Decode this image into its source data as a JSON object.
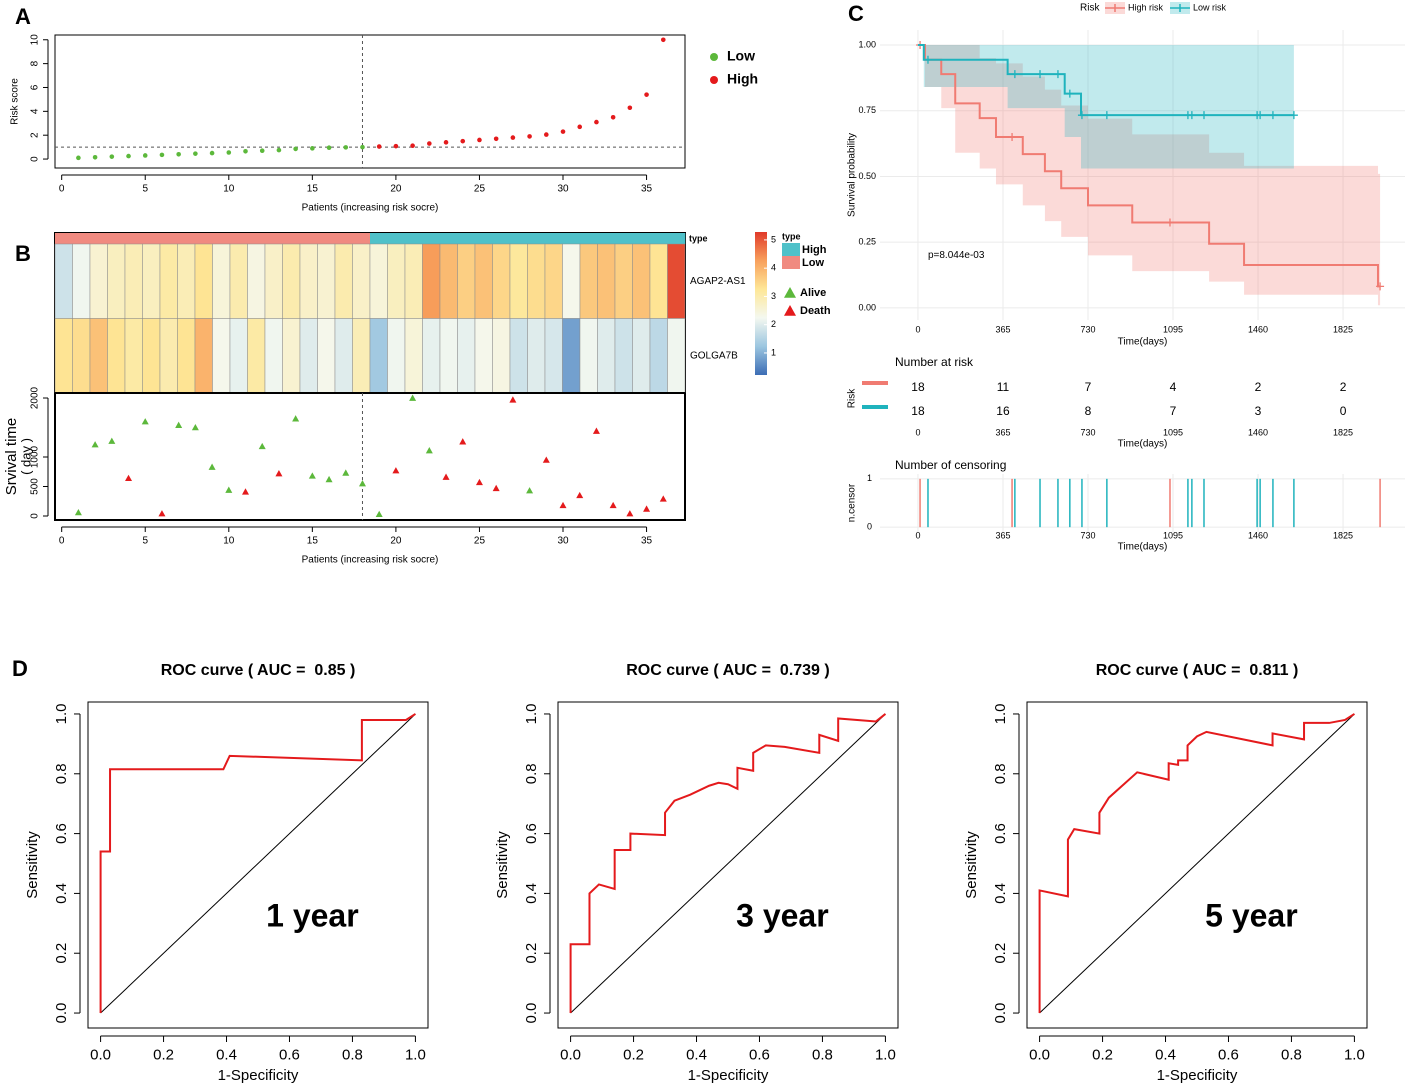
{
  "chart_data": [
    {
      "type": "scatter",
      "panel": "A",
      "marker": "circle",
      "ylabel": "Risk score",
      "xlabel": "Patients (increasing risk socre)",
      "xlim": [
        -0.4,
        37.3
      ],
      "ylim": [
        -0.75,
        10.4
      ],
      "xticks": [
        0,
        5,
        10,
        15,
        20,
        25,
        30,
        35
      ],
      "yticks": [
        0,
        2,
        4,
        6,
        8,
        10
      ],
      "reference_lines": {
        "x": 18,
        "y": 1
      },
      "legend": "right",
      "series": [
        {
          "name": "Low",
          "color": "#5cb83b",
          "x": [
            1,
            2,
            3,
            4,
            5,
            6,
            7,
            8,
            9,
            10,
            11,
            12,
            13,
            14,
            15,
            16,
            17,
            18
          ],
          "values": [
            0.1,
            0.15,
            0.2,
            0.25,
            0.3,
            0.35,
            0.4,
            0.45,
            0.5,
            0.55,
            0.65,
            0.7,
            0.75,
            0.85,
            0.9,
            0.95,
            0.98,
            1.0
          ]
        },
        {
          "name": "High",
          "color": "#e41a1c",
          "x": [
            19,
            20,
            21,
            22,
            23,
            24,
            25,
            26,
            27,
            28,
            29,
            30,
            31,
            32,
            33,
            34,
            35,
            36
          ],
          "values": [
            1.05,
            1.08,
            1.12,
            1.3,
            1.4,
            1.5,
            1.6,
            1.7,
            1.8,
            1.9,
            2.05,
            2.3,
            2.7,
            3.1,
            3.5,
            4.3,
            5.4,
            10.0
          ]
        }
      ]
    },
    {
      "type": "heatmap",
      "panel": "B",
      "rows": [
        "AGAP2-AS1",
        "GOLGA7B"
      ],
      "values": [
        [
          1.8,
          2.2,
          2.6,
          2.8,
          2.9,
          2.8,
          3.1,
          2.9,
          3.3,
          2.5,
          3.0,
          2.4,
          2.7,
          3.0,
          2.7,
          2.6,
          3.0,
          2.7,
          2.5,
          2.8,
          2.9,
          4.3,
          3.9,
          3.6,
          3.8,
          3.5,
          3.2,
          3.4,
          3.5,
          2.3,
          3.7,
          3.8,
          3.6,
          3.8,
          3.3,
          5.1
        ],
        [
          3.3,
          3.4,
          3.8,
          3.3,
          3.1,
          3.3,
          3.0,
          3.3,
          4.0,
          2.3,
          2.1,
          3.1,
          2.2,
          2.6,
          2.0,
          2.3,
          2.0,
          2.9,
          1.3,
          2.2,
          2.5,
          2.1,
          2.2,
          2.1,
          2.3,
          2.4,
          1.8,
          2.0,
          1.9,
          0.8,
          2.2,
          2.0,
          1.8,
          2.0,
          1.6,
          2.2
        ]
      ],
      "annotation": {
        "name": "type",
        "values": [
          "Low",
          "Low",
          "Low",
          "Low",
          "Low",
          "Low",
          "Low",
          "Low",
          "Low",
          "Low",
          "Low",
          "Low",
          "Low",
          "Low",
          "Low",
          "Low",
          "Low",
          "Low",
          "High",
          "High",
          "High",
          "High",
          "High",
          "High",
          "High",
          "High",
          "High",
          "High",
          "High",
          "High",
          "High",
          "High",
          "High",
          "High",
          "High",
          "High"
        ],
        "levels": [
          {
            "name": "High",
            "color": "#4fc1c9"
          },
          {
            "name": "Low",
            "color": "#f08a80"
          }
        ]
      },
      "zlim": [
        0.22,
        5.28
      ],
      "zticks": [
        1,
        2,
        3,
        4,
        5
      ],
      "colors": [
        "#3c6db5",
        "#9cc6e0",
        "#f4f8f0",
        "#fee797",
        "#f8a05c",
        "#e03a2a"
      ]
    },
    {
      "type": "scatter",
      "marker": "triangle",
      "ylabel": "Srvival time",
      "ylabel2": "( day )",
      "xlabel": "Patients (increasing risk socre)",
      "xlim": [
        -0.4,
        37.3
      ],
      "ylim": [
        -68,
        2085
      ],
      "xticks": [
        0,
        5,
        10,
        15,
        20,
        25,
        30,
        35
      ],
      "yticks": [
        0,
        500,
        1000,
        2000
      ],
      "reference_lines": {
        "x": 18
      },
      "legend": "right",
      "series": [
        {
          "name": "Alive",
          "color": "#5cb83b",
          "x": [
            1,
            2,
            3,
            5,
            7,
            8,
            9,
            10,
            12,
            14,
            15,
            16,
            17,
            18,
            19,
            21,
            22,
            28
          ],
          "values": [
            60,
            1210,
            1270,
            1600,
            1540,
            1500,
            830,
            440,
            1180,
            1650,
            680,
            620,
            730,
            550,
            30,
            2000,
            1110,
            430
          ]
        },
        {
          "name": "Death",
          "color": "#e41a1c",
          "x": [
            4,
            6,
            11,
            13,
            20,
            23,
            24,
            25,
            26,
            27,
            29,
            30,
            31,
            32,
            33,
            34,
            35,
            36
          ],
          "values": [
            640,
            40,
            410,
            720,
            770,
            660,
            1260,
            570,
            470,
            1970,
            950,
            180,
            350,
            1440,
            180,
            40,
            120,
            290
          ]
        }
      ]
    },
    {
      "type": "survival",
      "panel": "C",
      "legend_title": "Risk",
      "legend": "top",
      "xlabel": "Time(days)",
      "ylabel": "Survival probability",
      "pvalue": "p=8.044e-03",
      "grid": true,
      "xlim": [
        -163,
        2091
      ],
      "ylim": [
        -0.046,
        1.057
      ],
      "xticks": [
        0,
        365,
        730,
        1095,
        1460,
        1825
      ],
      "yticks": [
        {
          "value": 0,
          "label": "0.00"
        },
        {
          "value": 0.25,
          "label": "0.25"
        },
        {
          "value": 0.5,
          "label": "0.50"
        },
        {
          "value": 0.75,
          "label": "0.75"
        },
        {
          "value": 1,
          "label": "1.00"
        }
      ],
      "series": [
        {
          "name": "High risk",
          "color": "#f07b72",
          "x": [
            0,
            30,
            100,
            160,
            265,
            335,
            450,
            545,
            615,
            730,
            920,
            1250,
            1400,
            1975
          ],
          "values": [
            1,
            0.944,
            0.889,
            0.778,
            0.722,
            0.65,
            0.585,
            0.52,
            0.455,
            0.39,
            0.325,
            0.244,
            0.163,
            0.082
          ],
          "upper": [
            1,
            1,
            1,
            1,
            0.95,
            0.93,
            0.88,
            0.83,
            0.77,
            0.72,
            0.66,
            0.59,
            0.54,
            0.51
          ],
          "lower": [
            1,
            0.84,
            0.76,
            0.59,
            0.53,
            0.47,
            0.39,
            0.33,
            0.27,
            0.2,
            0.14,
            0.1,
            0.05,
            0.01
          ],
          "censor": [
            9,
            404,
            1082,
            1984
          ]
        },
        {
          "name": "Low risk",
          "color": "#1fb3bd",
          "x": [
            0,
            25,
            385,
            630,
            700
          ],
          "values": [
            1,
            0.944,
            0.889,
            0.815,
            0.733
          ],
          "upper": [
            1,
            1,
            1,
            1,
            1
          ],
          "lower": [
            1,
            0.84,
            0.76,
            0.65,
            0.53
          ],
          "censor": [
            43,
            416,
            524,
            601,
            652,
            704,
            811,
            1159,
            1176,
            1228,
            1456,
            1469,
            1524,
            1614
          ]
        }
      ]
    },
    {
      "type": "table",
      "title": "Number at risk",
      "ylabel": "Risk",
      "xlabel": "Time(days)",
      "xlim": [
        -163,
        2091
      ],
      "xticks": [
        0,
        365,
        730,
        1095,
        1460,
        1825
      ],
      "series": [
        {
          "color": "#f07b72",
          "values": [
            18,
            11,
            7,
            4,
            2,
            2
          ]
        },
        {
          "color": "#1fb3bd",
          "values": [
            18,
            16,
            8,
            7,
            3,
            0
          ]
        }
      ]
    },
    {
      "type": "censor",
      "title": "Number of censoring",
      "ylabel": "n.censor",
      "xlabel": "Time(days)",
      "xlim": [
        -163,
        2091
      ],
      "ylim": [
        -0.1,
        1.1
      ],
      "xticks": [
        0,
        365,
        730,
        1095,
        1460,
        1825
      ],
      "yticks": [
        0,
        1
      ],
      "series": [
        {
          "color": "#f07b72",
          "x": [
            9,
            404,
            1082,
            1984
          ],
          "values": [
            1,
            1,
            1,
            1
          ]
        },
        {
          "color": "#1fb3bd",
          "x": [
            43,
            416,
            524,
            601,
            652,
            704,
            811,
            1159,
            1176,
            1228,
            1456,
            1469,
            1524,
            1614
          ],
          "values": [
            1,
            1,
            1,
            1,
            1,
            1,
            1,
            1,
            1,
            1,
            1,
            1,
            1,
            1
          ]
        }
      ]
    },
    {
      "type": "line",
      "panel": "D",
      "title": "ROC curve ( AUC =  0.85 )",
      "annotation": "1 year",
      "xlabel": "1-Specificity",
      "ylabel": "Sensitivity",
      "diagonal": true,
      "xlim": [
        -0.04,
        1.04
      ],
      "ylim": [
        -0.05,
        1.04
      ],
      "xticks": [
        {
          "value": 0,
          "label": "0.0"
        },
        {
          "value": 0.2,
          "label": "0.2"
        },
        {
          "value": 0.4,
          "label": "0.4"
        },
        {
          "value": 0.6,
          "label": "0.6"
        },
        {
          "value": 0.8,
          "label": "0.8"
        },
        {
          "value": 1,
          "label": "1.0"
        }
      ],
      "yticks": [
        {
          "value": 0,
          "label": "0.0"
        },
        {
          "value": 0.2,
          "label": "0.2"
        },
        {
          "value": 0.4,
          "label": "0.4"
        },
        {
          "value": 0.6,
          "label": "0.6"
        },
        {
          "value": 0.8,
          "label": "0.8"
        },
        {
          "value": 1,
          "label": "1.0"
        }
      ],
      "series": [
        {
          "color": "#e41a1c",
          "x": [
            0,
            0,
            0.03,
            0.03,
            0.39,
            0.41,
            0.83,
            0.83,
            0.97,
            1
          ],
          "values": [
            0,
            0.54,
            0.54,
            0.815,
            0.815,
            0.86,
            0.845,
            0.98,
            0.98,
            1
          ]
        }
      ]
    },
    {
      "type": "line",
      "title": "ROC curve ( AUC =  0.739 )",
      "annotation": "3 year",
      "xlabel": "1-Specificity",
      "ylabel": "Sensitivity",
      "diagonal": true,
      "xlim": [
        -0.04,
        1.04
      ],
      "ylim": [
        -0.05,
        1.04
      ],
      "xticks": [
        {
          "value": 0,
          "label": "0.0"
        },
        {
          "value": 0.2,
          "label": "0.2"
        },
        {
          "value": 0.4,
          "label": "0.4"
        },
        {
          "value": 0.6,
          "label": "0.6"
        },
        {
          "value": 0.8,
          "label": "0.8"
        },
        {
          "value": 1,
          "label": "1.0"
        }
      ],
      "yticks": [
        {
          "value": 0,
          "label": "0.0"
        },
        {
          "value": 0.2,
          "label": "0.2"
        },
        {
          "value": 0.4,
          "label": "0.4"
        },
        {
          "value": 0.6,
          "label": "0.6"
        },
        {
          "value": 0.8,
          "label": "0.8"
        },
        {
          "value": 1,
          "label": "1.0"
        }
      ],
      "series": [
        {
          "color": "#e41a1c",
          "x": [
            0,
            0,
            0.06,
            0.06,
            0.09,
            0.14,
            0.14,
            0.19,
            0.19,
            0.3,
            0.3,
            0.33,
            0.38,
            0.44,
            0.47,
            0.5,
            0.53,
            0.53,
            0.58,
            0.58,
            0.62,
            0.68,
            0.79,
            0.79,
            0.85,
            0.85,
            0.97,
            1
          ],
          "values": [
            0,
            0.23,
            0.23,
            0.4,
            0.43,
            0.415,
            0.545,
            0.545,
            0.6,
            0.595,
            0.67,
            0.71,
            0.73,
            0.76,
            0.77,
            0.765,
            0.75,
            0.82,
            0.81,
            0.87,
            0.895,
            0.89,
            0.87,
            0.93,
            0.91,
            0.985,
            0.975,
            1
          ]
        }
      ]
    },
    {
      "type": "line",
      "title": "ROC curve ( AUC =  0.811 )",
      "annotation": "5 year",
      "xlabel": "1-Specificity",
      "ylabel": "Sensitivity",
      "diagonal": true,
      "xlim": [
        -0.04,
        1.04
      ],
      "ylim": [
        -0.05,
        1.04
      ],
      "xticks": [
        {
          "value": 0,
          "label": "0.0"
        },
        {
          "value": 0.2,
          "label": "0.2"
        },
        {
          "value": 0.4,
          "label": "0.4"
        },
        {
          "value": 0.6,
          "label": "0.6"
        },
        {
          "value": 0.8,
          "label": "0.8"
        },
        {
          "value": 1,
          "label": "1.0"
        }
      ],
      "yticks": [
        {
          "value": 0,
          "label": "0.0"
        },
        {
          "value": 0.2,
          "label": "0.2"
        },
        {
          "value": 0.4,
          "label": "0.4"
        },
        {
          "value": 0.6,
          "label": "0.6"
        },
        {
          "value": 0.8,
          "label": "0.8"
        },
        {
          "value": 1,
          "label": "1.0"
        }
      ],
      "series": [
        {
          "color": "#e41a1c",
          "x": [
            0,
            0,
            0.09,
            0.09,
            0.11,
            0.19,
            0.19,
            0.22,
            0.31,
            0.41,
            0.41,
            0.44,
            0.44,
            0.47,
            0.47,
            0.5,
            0.53,
            0.74,
            0.74,
            0.84,
            0.84,
            0.92,
            0.97,
            1
          ],
          "values": [
            0,
            0.41,
            0.39,
            0.58,
            0.615,
            0.6,
            0.67,
            0.72,
            0.805,
            0.78,
            0.835,
            0.83,
            0.845,
            0.845,
            0.895,
            0.925,
            0.94,
            0.895,
            0.935,
            0.915,
            0.97,
            0.97,
            0.98,
            1
          ]
        }
      ]
    }
  ]
}
